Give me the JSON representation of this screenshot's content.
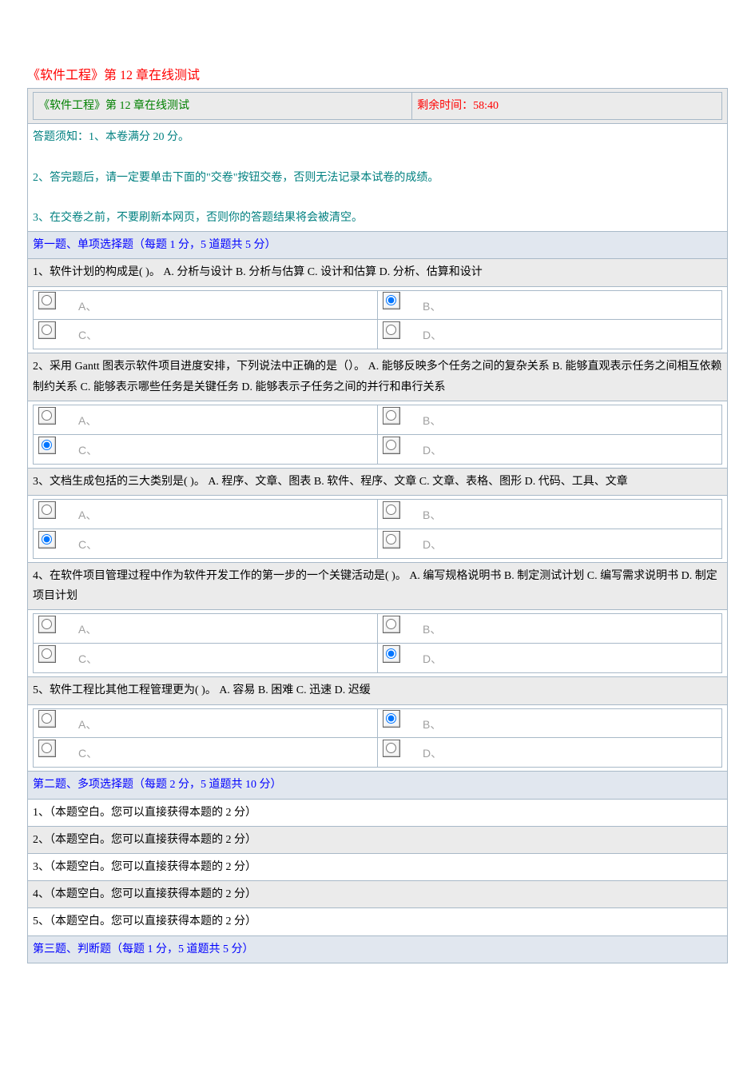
{
  "title": "《软件工程》第 12 章在线测试",
  "header_left": "《软件工程》第 12 章在线测试",
  "header_timer_label": "剩余时间：",
  "header_timer_value": "58:40",
  "instructions_line1": "答题须知：1、本卷满分 20 分。",
  "instructions_line2": "2、答完题后，请一定要单击下面的\"交卷\"按钮交卷，否则无法记录本试卷的成绩。",
  "instructions_line3": "3、在交卷之前，不要刷新本网页，否则你的答题结果将会被清空。",
  "section1_header": "第一题、单项选择题（每题 1 分，5 道题共 5 分）",
  "q1_text": "1、软件计划的构成是( )。  A. 分析与设计           B. 分析与估算  C. 设计和估算             D. 分析、估算和设计",
  "q2_text": "2、采用 Gantt 图表示软件项目进度安排，下列说法中正确的是（）。  A. 能够反映多个任务之间的复杂关系  B. 能够直观表示任务之间相互依赖制约关系  C. 能够表示哪些任务是关键任务  D. 能够表示子任务之间的并行和串行关系",
  "q3_text": "3、文档生成包括的三大类别是( )。  A. 程序、文章、图表  B. 软件、程序、文章  C. 文章、表格、图形  D. 代码、工具、文章",
  "q4_text": "4、在软件项目管理过程中作为软件开发工作的第一步的一个关键活动是( )。 A. 编写规格说明书              B. 制定测试计划  C. 编写需求说明书              D. 制定项目计划",
  "q5_text": "5、软件工程比其他工程管理更为( )。 A. 容易      B. 困难      C. 迅速      D. 迟缓",
  "opt_A": "A、",
  "opt_B": "B、",
  "opt_C": "C、",
  "opt_D": "D、",
  "section2_header": "第二题、多项选择题（每题 2 分，5 道题共 10 分）",
  "blank_q1": "1、（本题空白。您可以直接获得本题的 2 分）",
  "blank_q2": "2、（本题空白。您可以直接获得本题的 2 分）",
  "blank_q3": "3、（本题空白。您可以直接获得本题的 2 分）",
  "blank_q4": "4、（本题空白。您可以直接获得本题的 2 分）",
  "blank_q5": "5、（本题空白。您可以直接获得本题的 2 分）",
  "section3_header": "第三题、判断题（每题 1 分，5 道题共 5 分）",
  "answers": {
    "q1": "B",
    "q2": "C",
    "q3": "C",
    "q4": "D",
    "q5": "B"
  },
  "colors": {
    "title": "#ff0000",
    "header_green": "#008000",
    "timer_red": "#ff0000",
    "teal": "#008080",
    "section_blue": "#0000ff",
    "border": "#a8b9c8",
    "section_bg": "#e1e7ef",
    "alt_bg": "#ebebeb",
    "opt_gray": "#a0a0a0"
  },
  "fontsize_body": 14,
  "fontsize_title": 16
}
